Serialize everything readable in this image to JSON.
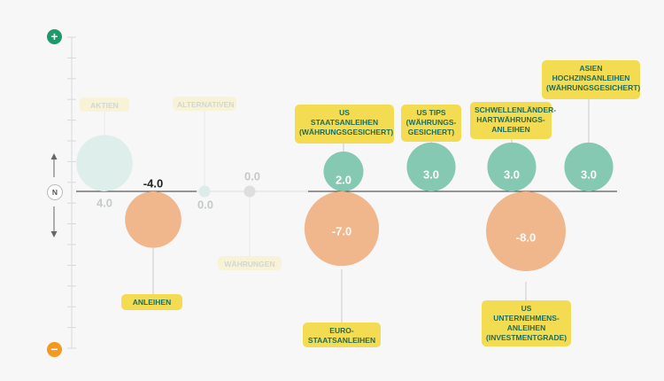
{
  "controls": {
    "plus": "+",
    "minus": "−",
    "neutral": "N"
  },
  "colors": {
    "positive": "#86c9b2",
    "negative": "#f0b68c",
    "positive_faded": "#deeeea",
    "negative_faded": "#f8f3d6",
    "label": "#f4dc52",
    "label_text": "#1f6b5a"
  },
  "chart_data": {
    "type": "bubble",
    "title": "",
    "ylim": [
      -8,
      8
    ],
    "grid": false,
    "items": [
      {
        "name": "AKTIEN",
        "value": 4.0,
        "value_label": "4.0",
        "faded": true
      },
      {
        "name": "ANLEIHEN",
        "value": -4.0,
        "value_label": "-4.0",
        "faded": false
      },
      {
        "name": "ALTERNATIVEN",
        "value": 0.0,
        "value_label": "0.0",
        "faded": true
      },
      {
        "name": "WÄHRUNGEN",
        "value": 0.0,
        "value_label": "0.0",
        "faded": true
      },
      {
        "name": "US STAATSANLEIHEN (WÄHRUNGSGESICHERT)",
        "value": 2.0,
        "value_label": "2.0",
        "faded": false
      },
      {
        "name": "EURO-STAATSANLEIHEN",
        "value": -7.0,
        "value_label": "-7.0",
        "faded": false
      },
      {
        "name": "US TIPS (WÄHRUNGS-GESICHERT)",
        "value": 3.0,
        "value_label": "3.0",
        "faded": false
      },
      {
        "name": "SCHWELLENLÄNDER-HARTWÄHRUNGS-ANLEIHEN",
        "value": 3.0,
        "value_label": "3.0",
        "faded": false
      },
      {
        "name": "US UNTERNEHMENS-ANLEIHEN (INVESTMENTGRADE)",
        "value": -8.0,
        "value_label": "-8.0",
        "faded": false
      },
      {
        "name": "ASIEN HOCHZINSANLEIHEN (WÄHRUNGSGESICHERT)",
        "value": 3.0,
        "value_label": "3.0",
        "faded": false
      }
    ]
  },
  "labels": {
    "aktien": [
      "AKTIEN"
    ],
    "anleihen": [
      "ANLEIHEN"
    ],
    "alternativen": [
      "ALTERNATIVEN"
    ],
    "waehrungen": [
      "WÄHRUNGEN"
    ],
    "us_staat": [
      "US",
      "STAATSANLEIHEN",
      "(WÄHRUNGSGESICHERT)"
    ],
    "euro_staat": [
      "EURO-",
      "STAATSANLEIHEN"
    ],
    "us_tips": [
      "US TIPS",
      "(WÄHRUNGS-",
      "GESICHERT)"
    ],
    "em_hard": [
      "SCHWELLENLÄNDER-",
      "HARTWÄHRUNGS-",
      "ANLEIHEN"
    ],
    "us_corp": [
      "US",
      "UNTERNEHMENS-",
      "ANLEIHEN",
      "(INVESTMENTGRADE)"
    ],
    "asia_hy": [
      "ASIEN",
      "HOCHZINSANLEIHEN",
      "(WÄHRUNGSGESICHERT)"
    ]
  }
}
